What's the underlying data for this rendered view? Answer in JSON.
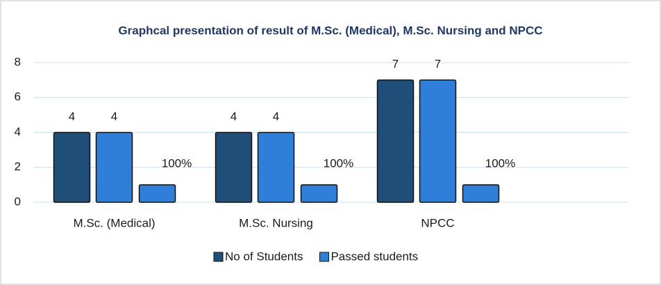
{
  "chart_data": {
    "type": "bar",
    "title": "Graphcal presentation of  result of M.Sc. (Medical), M.Sc. Nursing and NPCC",
    "categories": [
      "M.Sc. (Medical)",
      "M.Sc. Nursing",
      "NPCC"
    ],
    "series": [
      {
        "name": "No of Students",
        "color": "#1f4e79",
        "values": [
          4,
          4,
          7
        ]
      },
      {
        "name": "Passed students",
        "color": "#2f7fd8",
        "values": [
          4,
          4,
          7
        ]
      },
      {
        "color": "#2f7fd8",
        "values": [
          1,
          1,
          1
        ],
        "value_labels": [
          "100%",
          "100%",
          "100%"
        ]
      }
    ],
    "ylim": [
      0,
      8
    ],
    "yticks": [
      0,
      2,
      4,
      6,
      8
    ],
    "grid": true,
    "legend": "bottom"
  }
}
